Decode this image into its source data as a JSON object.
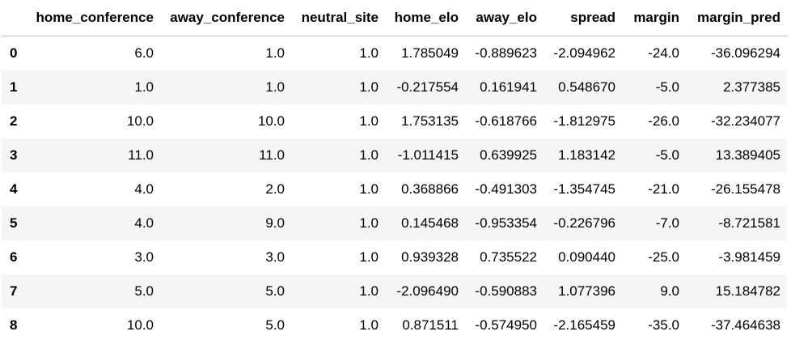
{
  "table": {
    "columns": [
      "home_conference",
      "away_conference",
      "neutral_site",
      "home_elo",
      "away_elo",
      "spread",
      "margin",
      "margin_pred"
    ],
    "rows": [
      {
        "index": "0",
        "cells": [
          "6.0",
          "1.0",
          "1.0",
          "1.785049",
          "-0.889623",
          "-2.094962",
          "-24.0",
          "-36.096294"
        ]
      },
      {
        "index": "1",
        "cells": [
          "1.0",
          "1.0",
          "1.0",
          "-0.217554",
          "0.161941",
          "0.548670",
          "-5.0",
          "2.377385"
        ]
      },
      {
        "index": "2",
        "cells": [
          "10.0",
          "10.0",
          "1.0",
          "1.753135",
          "-0.618766",
          "-1.812975",
          "-26.0",
          "-32.234077"
        ]
      },
      {
        "index": "3",
        "cells": [
          "11.0",
          "11.0",
          "1.0",
          "-1.011415",
          "0.639925",
          "1.183142",
          "-5.0",
          "13.389405"
        ]
      },
      {
        "index": "4",
        "cells": [
          "4.0",
          "2.0",
          "1.0",
          "0.368866",
          "-0.491303",
          "-1.354745",
          "-21.0",
          "-26.155478"
        ]
      },
      {
        "index": "5",
        "cells": [
          "4.0",
          "9.0",
          "1.0",
          "0.145468",
          "-0.953354",
          "-0.226796",
          "-7.0",
          "-8.721581"
        ]
      },
      {
        "index": "6",
        "cells": [
          "3.0",
          "3.0",
          "1.0",
          "0.939328",
          "0.735522",
          "0.090440",
          "-25.0",
          "-3.981459"
        ]
      },
      {
        "index": "7",
        "cells": [
          "5.0",
          "5.0",
          "1.0",
          "-2.096490",
          "-0.590883",
          "1.077396",
          "9.0",
          "15.184782"
        ]
      },
      {
        "index": "8",
        "cells": [
          "10.0",
          "5.0",
          "1.0",
          "0.871511",
          "-0.574950",
          "-2.165459",
          "-35.0",
          "-37.464638"
        ]
      }
    ]
  }
}
